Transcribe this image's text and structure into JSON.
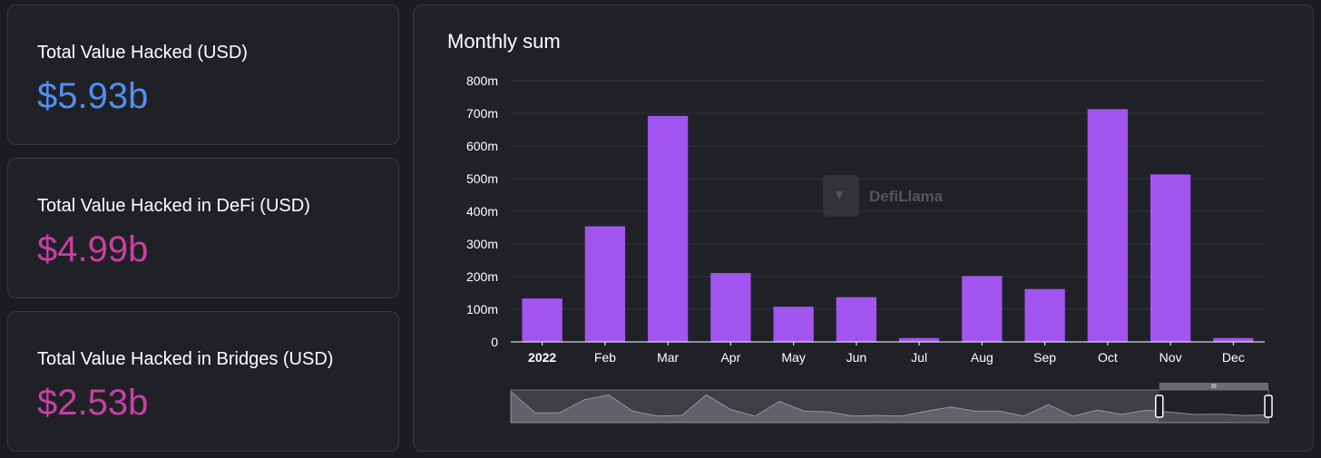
{
  "stats": {
    "total": {
      "label": "Total Value Hacked (USD)",
      "value": "$5.93b",
      "color": "#4f8ff0"
    },
    "defi": {
      "label": "Total Value Hacked in DeFi (USD)",
      "value": "$4.99b",
      "color": "#c93fa3"
    },
    "bridges": {
      "label": "Total Value Hacked in Bridges (USD)",
      "value": "$2.53b",
      "color": "#c93fa3"
    }
  },
  "panel": {
    "title": "Monthly sum"
  },
  "watermark": {
    "text": "DefiLlama"
  },
  "zoom": {
    "handle_glyph": "III"
  },
  "colors": {
    "bar": "#a155ee",
    "grid": "#34353b",
    "axis": "#ffffff"
  },
  "chart_data": {
    "type": "bar",
    "title": "Monthly sum",
    "categories": [
      "2022",
      "Feb",
      "Mar",
      "Apr",
      "May",
      "Jun",
      "Jul",
      "Aug",
      "Sep",
      "Oct",
      "Nov",
      "Dec"
    ],
    "category_bold": [
      true,
      false,
      false,
      false,
      false,
      false,
      false,
      false,
      false,
      false,
      false,
      false
    ],
    "values": [
      133,
      354,
      692,
      211,
      108,
      137,
      12,
      202,
      162,
      713,
      513,
      12
    ],
    "unit": "m",
    "ylim": [
      0,
      800
    ],
    "yticks": [
      "0",
      "100m",
      "200m",
      "300m",
      "400m",
      "500m",
      "600m",
      "700m",
      "800m"
    ],
    "grid": true,
    "legend": "none",
    "overview": {
      "values": [
        0.95,
        0.3,
        0.3,
        0.7,
        0.85,
        0.35,
        0.2,
        0.22,
        0.85,
        0.4,
        0.2,
        0.65,
        0.35,
        0.33,
        0.2,
        0.22,
        0.2,
        0.35,
        0.48,
        0.35,
        0.35,
        0.2,
        0.55,
        0.2,
        0.38,
        0.25,
        0.38,
        0.32,
        0.25,
        0.26,
        0.22,
        0.24
      ],
      "selected_from_fraction": 0.856,
      "selected_to_fraction": 1.0
    }
  }
}
